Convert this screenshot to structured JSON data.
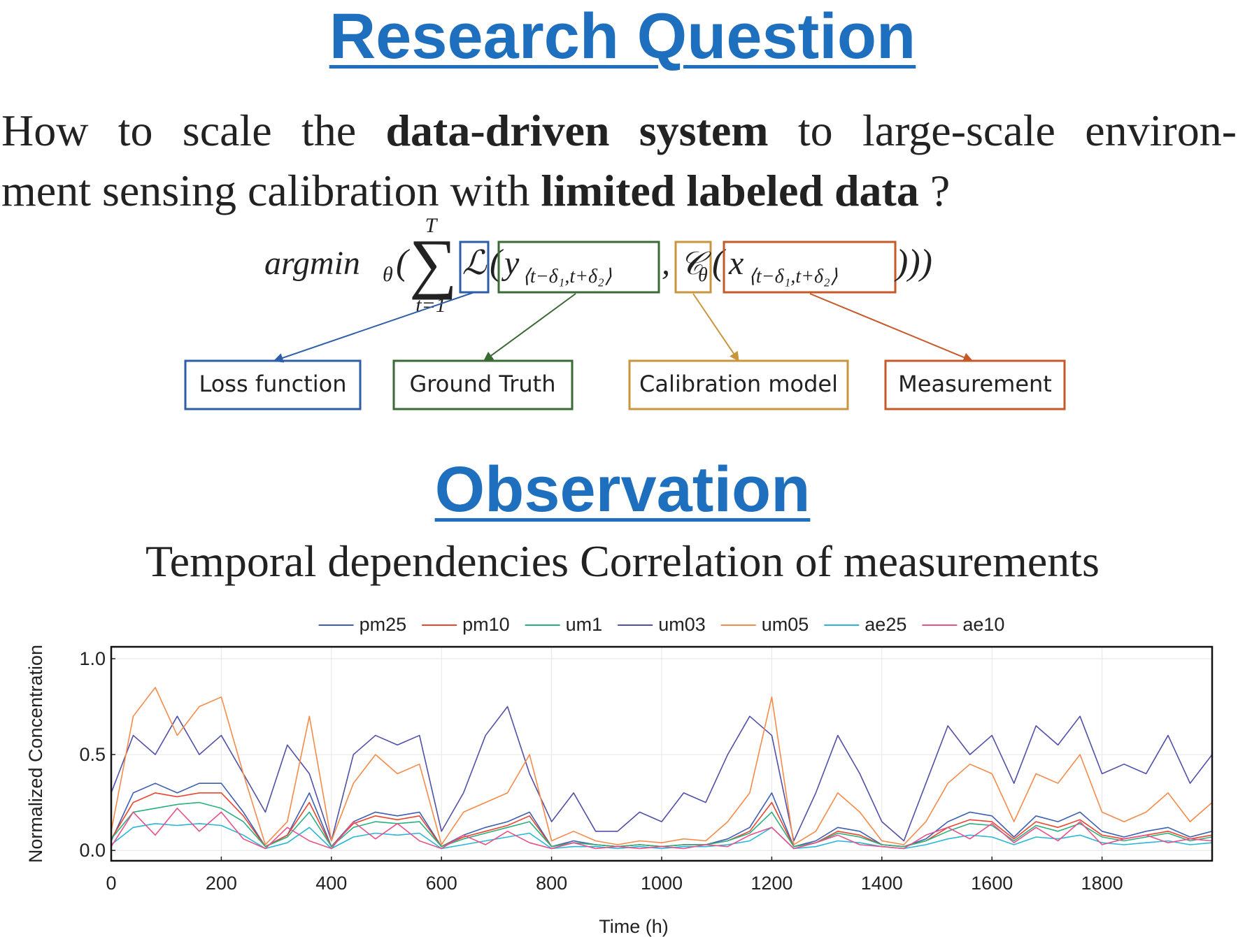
{
  "header": {
    "title": "Research Question"
  },
  "question": {
    "line1": [
      "How to scale the ",
      "data-driven system",
      " to large-scale environ-"
    ],
    "line2": [
      "ment sensing calibration with ",
      "limited labeled data",
      " ?"
    ]
  },
  "formula": {
    "argmin": "argmin",
    "argmin_sub": "θ",
    "open": "(",
    "sum": "∑",
    "sum_top": "T",
    "sum_bottom": "t=1",
    "loss": "ℒ",
    "loss_open": "(",
    "gt": "y",
    "gt_sub": "⟨t−δ₁,t+δ₂⟩",
    "comma": ",",
    "model": "𝒞",
    "model_sub": "θ",
    "model_open": "(",
    "meas": "x",
    "meas_sub": "⟨t−δ₁,t+δ₂⟩",
    "close": ")))"
  },
  "labels": [
    "Loss function",
    "Ground Truth",
    "Calibration model",
    "Measurement"
  ],
  "observation": {
    "title": "Observation",
    "subtitle": "Temporal dependencies Correlation of measurements"
  },
  "chart_data": {
    "type": "line",
    "xlabel": "Time (h)",
    "ylabel": "Normalized Concentration",
    "x": [
      0,
      40,
      80,
      120,
      160,
      200,
      240,
      280,
      320,
      360,
      400,
      440,
      480,
      520,
      560,
      600,
      640,
      680,
      720,
      760,
      800,
      840,
      880,
      920,
      960,
      1000,
      1040,
      1080,
      1120,
      1160,
      1200,
      1240,
      1280,
      1320,
      1360,
      1400,
      1440,
      1480,
      1520,
      1560,
      1600,
      1640,
      1680,
      1720,
      1760,
      1800,
      1840,
      1880,
      1920,
      1960,
      2000
    ],
    "xlim": [
      0,
      2000
    ],
    "xticks": [
      0,
      200,
      400,
      600,
      800,
      1000,
      1200,
      1400,
      1600,
      1800
    ],
    "ylim": [
      -0.054,
      1.062
    ],
    "yticks": [
      {
        "value": 0,
        "label": "0.0"
      },
      {
        "value": 0.5,
        "label": "0.5"
      },
      {
        "value": 1,
        "label": "1.0"
      }
    ],
    "grid": true,
    "legend": "top",
    "series": [
      {
        "name": "pm25",
        "color": "#3d5fb0",
        "values": [
          0.05,
          0.3,
          0.35,
          0.3,
          0.35,
          0.35,
          0.2,
          0.02,
          0.08,
          0.3,
          0.02,
          0.15,
          0.2,
          0.18,
          0.2,
          0.02,
          0.08,
          0.12,
          0.15,
          0.2,
          0.02,
          0.05,
          0.03,
          0.02,
          0.03,
          0.02,
          0.03,
          0.03,
          0.06,
          0.12,
          0.3,
          0.02,
          0.05,
          0.12,
          0.1,
          0.03,
          0.02,
          0.06,
          0.15,
          0.2,
          0.18,
          0.07,
          0.18,
          0.15,
          0.2,
          0.1,
          0.07,
          0.1,
          0.12,
          0.07,
          0.1
        ]
      },
      {
        "name": "pm10",
        "color": "#e8462f",
        "values": [
          0.06,
          0.25,
          0.3,
          0.28,
          0.3,
          0.3,
          0.18,
          0.02,
          0.08,
          0.25,
          0.02,
          0.14,
          0.18,
          0.16,
          0.18,
          0.02,
          0.07,
          0.1,
          0.13,
          0.18,
          0.02,
          0.04,
          0.03,
          0.02,
          0.03,
          0.02,
          0.03,
          0.03,
          0.05,
          0.1,
          0.25,
          0.02,
          0.04,
          0.1,
          0.08,
          0.03,
          0.02,
          0.05,
          0.12,
          0.16,
          0.15,
          0.06,
          0.15,
          0.12,
          0.16,
          0.08,
          0.06,
          0.08,
          0.1,
          0.06,
          0.08
        ]
      },
      {
        "name": "um1",
        "color": "#2ab07f",
        "values": [
          0.06,
          0.2,
          0.22,
          0.24,
          0.25,
          0.22,
          0.15,
          0.02,
          0.07,
          0.2,
          0.02,
          0.12,
          0.15,
          0.14,
          0.15,
          0.02,
          0.06,
          0.09,
          0.12,
          0.15,
          0.02,
          0.04,
          0.03,
          0.02,
          0.03,
          0.02,
          0.03,
          0.03,
          0.05,
          0.09,
          0.2,
          0.02,
          0.04,
          0.09,
          0.07,
          0.03,
          0.02,
          0.05,
          0.1,
          0.14,
          0.13,
          0.05,
          0.13,
          0.1,
          0.14,
          0.07,
          0.05,
          0.07,
          0.09,
          0.05,
          0.07
        ]
      },
      {
        "name": "um03",
        "color": "#5050a8",
        "values": [
          0.3,
          0.6,
          0.5,
          0.7,
          0.5,
          0.6,
          0.4,
          0.2,
          0.55,
          0.4,
          0.05,
          0.5,
          0.6,
          0.55,
          0.6,
          0.1,
          0.3,
          0.6,
          0.75,
          0.4,
          0.15,
          0.3,
          0.1,
          0.1,
          0.2,
          0.15,
          0.3,
          0.25,
          0.5,
          0.7,
          0.6,
          0.05,
          0.3,
          0.6,
          0.4,
          0.15,
          0.05,
          0.35,
          0.65,
          0.5,
          0.6,
          0.35,
          0.65,
          0.55,
          0.7,
          0.4,
          0.45,
          0.4,
          0.6,
          0.35,
          0.5
        ]
      },
      {
        "name": "um05",
        "color": "#f48b4a",
        "values": [
          0.1,
          0.7,
          0.85,
          0.6,
          0.75,
          0.8,
          0.4,
          0.03,
          0.15,
          0.7,
          0.05,
          0.35,
          0.5,
          0.4,
          0.45,
          0.03,
          0.2,
          0.25,
          0.3,
          0.5,
          0.05,
          0.1,
          0.05,
          0.03,
          0.05,
          0.04,
          0.06,
          0.05,
          0.15,
          0.3,
          0.8,
          0.03,
          0.1,
          0.3,
          0.2,
          0.05,
          0.03,
          0.15,
          0.35,
          0.45,
          0.4,
          0.15,
          0.4,
          0.35,
          0.5,
          0.2,
          0.15,
          0.2,
          0.3,
          0.15,
          0.25
        ]
      },
      {
        "name": "ae25",
        "color": "#29b6d8",
        "values": [
          0.03,
          0.12,
          0.14,
          0.13,
          0.14,
          0.13,
          0.08,
          0.01,
          0.04,
          0.12,
          0.01,
          0.07,
          0.09,
          0.08,
          0.09,
          0.01,
          0.03,
          0.05,
          0.07,
          0.09,
          0.01,
          0.02,
          0.02,
          0.01,
          0.02,
          0.01,
          0.02,
          0.02,
          0.03,
          0.05,
          0.12,
          0.01,
          0.02,
          0.05,
          0.04,
          0.02,
          0.01,
          0.03,
          0.06,
          0.08,
          0.07,
          0.03,
          0.07,
          0.06,
          0.08,
          0.04,
          0.03,
          0.04,
          0.05,
          0.03,
          0.04
        ]
      },
      {
        "name": "ae10",
        "color": "#e8508a",
        "values": [
          0.02,
          0.2,
          0.08,
          0.22,
          0.1,
          0.2,
          0.06,
          0.01,
          0.12,
          0.05,
          0.01,
          0.15,
          0.06,
          0.14,
          0.05,
          0.01,
          0.08,
          0.03,
          0.1,
          0.04,
          0.01,
          0.04,
          0.01,
          0.02,
          0.01,
          0.02,
          0.01,
          0.03,
          0.02,
          0.08,
          0.12,
          0.01,
          0.04,
          0.08,
          0.03,
          0.02,
          0.01,
          0.08,
          0.12,
          0.06,
          0.14,
          0.04,
          0.12,
          0.05,
          0.15,
          0.03,
          0.06,
          0.08,
          0.04,
          0.06,
          0.05
        ]
      }
    ]
  }
}
